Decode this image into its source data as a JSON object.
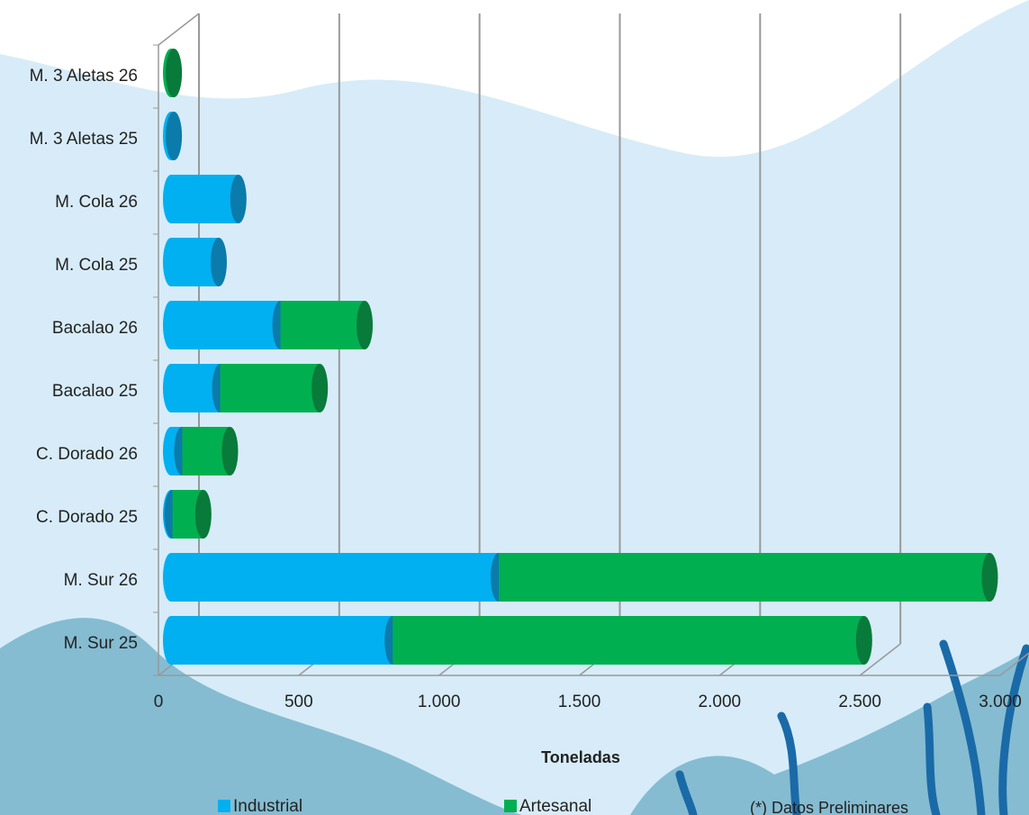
{
  "chart_data": {
    "type": "bar3d_stacked_horizontal",
    "categories": [
      "M. Sur 25",
      "M. Sur 26",
      "C. Dorado 25",
      "C. Dorado 26",
      "Bacalao 25",
      "Bacalao 26",
      "M. Cola 25",
      "M. Cola 26",
      "M. 3 Aletas 25",
      "M. 3 Aletas 26"
    ],
    "series": [
      {
        "name": "Industrial",
        "color": "#00b0f0",
        "values": [
          790,
          1168,
          5,
          40,
          175,
          390,
          170,
          240,
          10,
          0
        ]
      },
      {
        "name": "Artesanal",
        "color": "#00b050",
        "values": [
          1680,
          1750,
          110,
          170,
          355,
          300,
          0,
          0,
          0,
          10
        ]
      }
    ],
    "xlim": [
      0,
      3000
    ],
    "xticks": [
      0,
      500,
      {
        "value": 1000,
        "label": "1.000"
      },
      {
        "value": 1500,
        "label": "1.500"
      },
      {
        "value": 2000,
        "label": "2.000"
      },
      {
        "value": 2500,
        "label": "2.500"
      },
      {
        "value": 3000,
        "label": "3.000"
      }
    ],
    "xlabel": "Toneladas",
    "note": "(*) Datos Preliminares",
    "grid": true
  }
}
